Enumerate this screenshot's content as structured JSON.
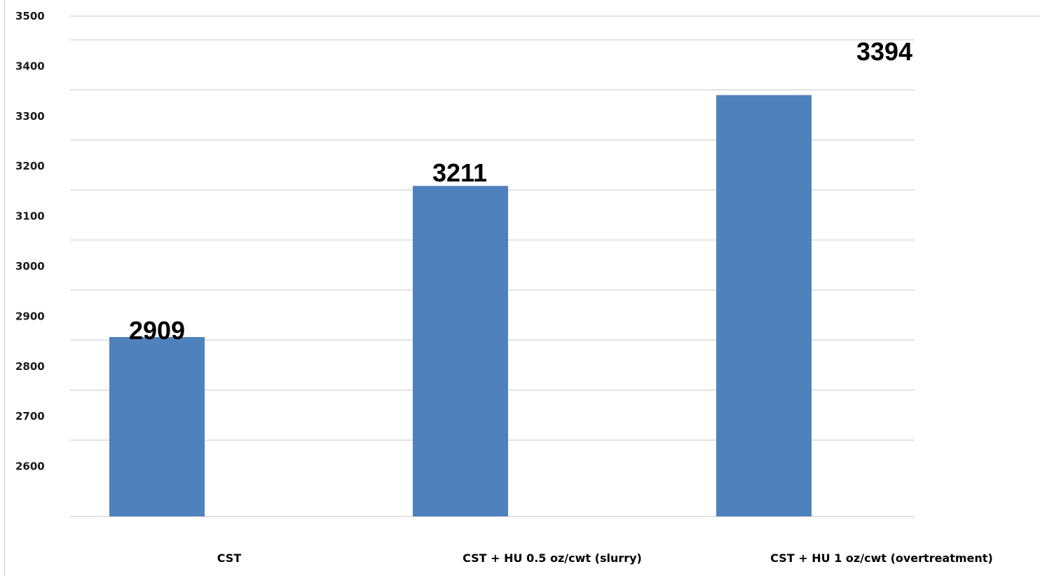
{
  "chart_data": {
    "type": "bar",
    "title": "",
    "xlabel": "",
    "ylabel": "",
    "categories": [
      "CST",
      "CST + HU 0.5 oz/cwt (slurry)",
      "CST + HU 1 oz/cwt (overtreatment)"
    ],
    "values": [
      2909,
      3211,
      3394
    ],
    "data_labels": [
      "2909",
      "3211",
      "3394"
    ],
    "ylim": [
      2500,
      3500
    ],
    "y_ticks": [
      2600,
      2700,
      2800,
      2900,
      3000,
      3100,
      3200,
      3300,
      3400,
      3500
    ],
    "grid": true,
    "legend": "none",
    "colors": {
      "bar": "#4f81bd",
      "grid": "#d9d9d9",
      "text": "#000000"
    }
  }
}
